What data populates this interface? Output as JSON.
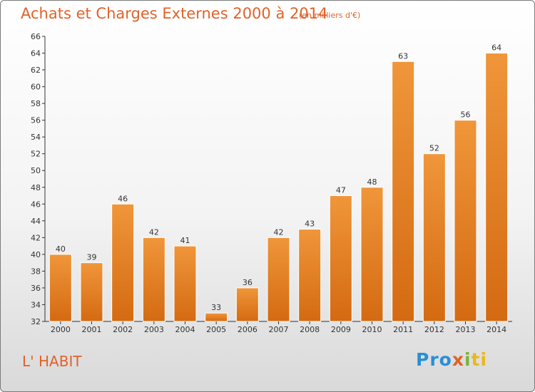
{
  "chart_data": {
    "type": "bar",
    "title": "Achats et Charges Externes 2000 à 2014",
    "unit_note": "(en milliers d'€)",
    "categories": [
      "2000",
      "2001",
      "2002",
      "2003",
      "2004",
      "2005",
      "2006",
      "2007",
      "2008",
      "2009",
      "2010",
      "2011",
      "2012",
      "2013",
      "2014"
    ],
    "values": [
      40,
      39,
      46,
      42,
      41,
      33,
      36,
      42,
      43,
      47,
      48,
      63,
      52,
      56,
      64
    ],
    "ylim": [
      32,
      66
    ],
    "yticks": [
      32,
      34,
      36,
      38,
      40,
      42,
      44,
      46,
      48,
      50,
      52,
      54,
      56,
      58,
      60,
      62,
      64,
      66
    ],
    "xlabel": "",
    "ylabel": "",
    "grid": false,
    "bar_color": "#f0963a",
    "bar_color_dark": "#d46a12"
  },
  "footer": {
    "commune": "L' HABIT",
    "logo": {
      "p1": "Pro",
      "p2": "x",
      "p3": "i",
      "p4": "ti"
    }
  }
}
